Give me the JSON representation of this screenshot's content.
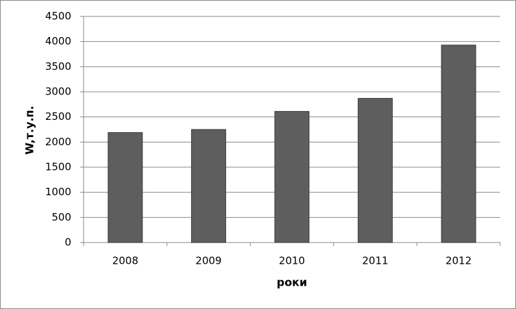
{
  "chart_data": {
    "type": "bar",
    "categories": [
      "2008",
      "2009",
      "2010",
      "2011",
      "2012"
    ],
    "values": [
      2190,
      2250,
      2610,
      2870,
      3930
    ],
    "color": "#5e5e5e",
    "ylim": [
      0,
      4500
    ],
    "yticks": [
      0,
      500,
      1000,
      1500,
      2000,
      2500,
      3000,
      3500,
      4000,
      4500
    ],
    "grid": true,
    "y_label": "W,т.у.п.",
    "x_label": "роки"
  }
}
